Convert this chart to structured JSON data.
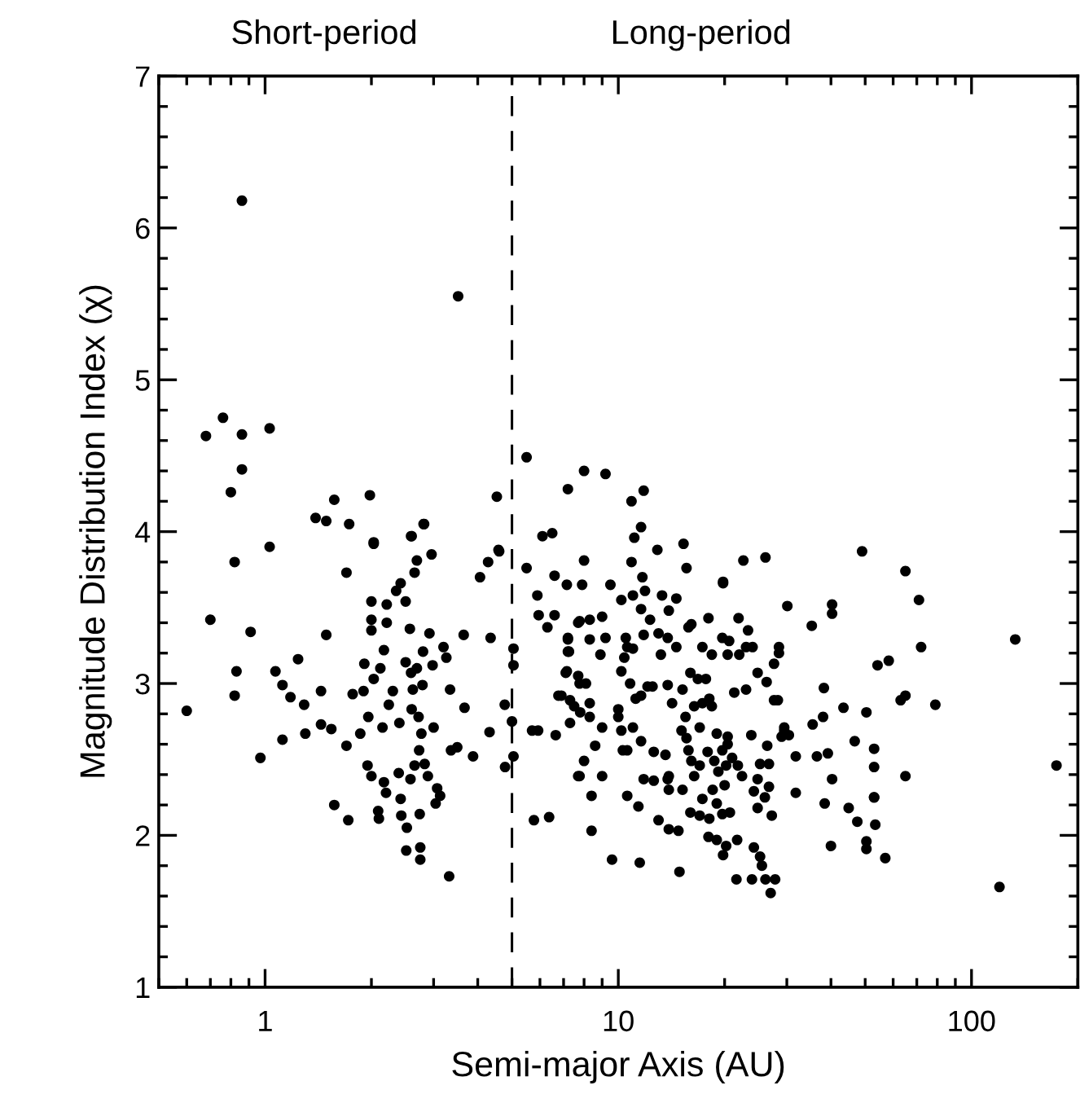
{
  "chart_data": {
    "type": "scatter",
    "xlabel": "Semi-major Axis (AU)",
    "ylabel": "Magnitude Distribution Index (χ)",
    "annotations": [
      "Short-period",
      "Long-period"
    ],
    "log": "x",
    "xlim": [
      0.5,
      200
    ],
    "xticks": [
      1,
      10,
      100
    ],
    "ylim": [
      1,
      7
    ],
    "yticks": [
      1,
      2,
      3,
      4,
      5,
      6,
      7
    ],
    "grid": false,
    "marker": "circle",
    "ref_lines": [
      {
        "axis": "x",
        "value": 5,
        "color": "#000000",
        "line_style": "dashed"
      }
    ],
    "series": [
      {
        "color": "#000000",
        "x": [
          0.86,
          3.52,
          0.68,
          0.76,
          0.86,
          0.86,
          0.8,
          1.03,
          1.39,
          1.49,
          1.57,
          1.73,
          1.98,
          2.03,
          2.6,
          2.82,
          4.53,
          4.58,
          5.5,
          7.2,
          8.0,
          6.1,
          6.5,
          9.2,
          10.9,
          11.8,
          11.6,
          11.1,
          12.9,
          15.3,
          49,
          0.6,
          0.7,
          0.82,
          0.82,
          0.83,
          0.91,
          0.97,
          1.03,
          1.07,
          1.12,
          1.12,
          1.18,
          1.24,
          1.29,
          1.3,
          1.44,
          1.44,
          1.49,
          1.54,
          1.57,
          1.7,
          1.7,
          1.72,
          1.77,
          1.91,
          1.9,
          1.86,
          1.95,
          2.0,
          2.0,
          2.0,
          2.03,
          2.03,
          1.96,
          2.0,
          2.09,
          2.1,
          2.21,
          2.21,
          2.17,
          2.12,
          2.15,
          2.24,
          2.17,
          2.2,
          2.3,
          2.35,
          2.42,
          2.39,
          2.4,
          2.42,
          2.43,
          2.5,
          2.5,
          2.52,
          2.51,
          2.59,
          2.57,
          2.59,
          2.6,
          2.58,
          2.62,
          2.65,
          2.65,
          2.69,
          2.69,
          2.72,
          2.73,
          2.74,
          2.75,
          2.75,
          2.77,
          2.79,
          2.8,
          2.81,
          2.83,
          2.89,
          2.96,
          2.92,
          2.98,
          3.0,
          3.04,
          3.07,
          3.13,
          3.2,
          3.26,
          3.32,
          3.34,
          3.36,
          3.5,
          3.65,
          3.67,
          3.88,
          4.06,
          4.28,
          4.35,
          4.32,
          4.6,
          4.77,
          4.78,
          5.05,
          5.05,
          5.0,
          5.05,
          5.5,
          5.77,
          6.37,
          5.9,
          5.95,
          5.93,
          6.3,
          6.6,
          6.6,
          6.65,
          6.77,
          7.15,
          7.2,
          7.25,
          7.1,
          7.3,
          7.3,
          7.77,
          7.77,
          7.77,
          8.0,
          8.0,
          7.8,
          15.6,
          10.9,
          22.6,
          26.1,
          65,
          71,
          7.9,
          9.5,
          11.7,
          10.2,
          11.0,
          11.9,
          13.3,
          14.6,
          19.8,
          19.8,
          30.1,
          40.3,
          40.3,
          35.3,
          54.2,
          58.3,
          72,
          65,
          63,
          79,
          133,
          174,
          120,
          65,
          53,
          53,
          53,
          53,
          53.4,
          57,
          50.4,
          50.4,
          47.5,
          44.9,
          46.7,
          50.4,
          40,
          40.3,
          38.4,
          39.2,
          38,
          38.2,
          43.4,
          35.5,
          36.5,
          31.8,
          30.4,
          29.5,
          28.5,
          28.5,
          27.6,
          28.3,
          26.3,
          27,
          27.8,
          26.1,
          23.9,
          21.6,
          25.5,
          25.2,
          24.2,
          21.7,
          19.8,
          20.2,
          19,
          18,
          14.9,
          11.5,
          9.6,
          13.9,
          14.8,
          13.0,
          11.4,
          10.6,
          8.4,
          8.4,
          9.0,
          7.7,
          11.8,
          12.6,
          13.8,
          13.9,
          15.2,
          16.0,
          17.0,
          18.1,
          17.3,
          18.5,
          19,
          20,
          19.7,
          20.7,
          24.2,
          24.8,
          26,
          27.2,
          26.7,
          24.8,
          25.2,
          26.7,
          23.8,
          26.4,
          19.7,
          20.4,
          21.0,
          21.8,
          22.4,
          19.2,
          20.2,
          18.7,
          17.9,
          17.0,
          16.4,
          15.8,
          16.1,
          15.6,
          15.1,
          15.5,
          17.0,
          16.4,
          17.3,
          18.1,
          18.4,
          19,
          20.4,
          21.3,
          23,
          24.8,
          27.6,
          29.5,
          31.8,
          29.0,
          17.7,
          16.8,
          15.2,
          16.0,
          14.2,
          13.8,
          12.5,
          11.2,
          11.6,
          10.8,
          12.1,
          10,
          10,
          10.2,
          10.3,
          10.6,
          11,
          11.6,
          12.6,
          13.6,
          13.9,
          9,
          8.6,
          8.3,
          8.3,
          6.9,
          7.5,
          8.1,
          5.7,
          7.15,
          7.7,
          8.9,
          10.4,
          10.6,
          11.0,
          11.8,
          13.0,
          13.8,
          14.6,
          15.8,
          16.1,
          17.3,
          18.4,
          20.4,
          22,
          23,
          24,
          23.3,
          21.9,
          18.0,
          12.3,
          13.9,
          11.6,
          9.0,
          8.3,
          8.3,
          7.7,
          7.2,
          7.2,
          9.2,
          10.5,
          13.2,
          10.2,
          19.7,
          20.6
        ],
        "values": [
          6.18,
          5.55,
          4.63,
          4.75,
          4.64,
          4.41,
          4.26,
          4.68,
          4.09,
          4.07,
          4.21,
          4.05,
          4.24,
          3.93,
          3.97,
          4.05,
          4.23,
          3.88,
          4.49,
          4.28,
          4.4,
          3.97,
          3.99,
          4.38,
          4.2,
          4.27,
          4.03,
          3.96,
          3.88,
          3.92,
          3.87,
          2.82,
          3.42,
          3.8,
          2.92,
          3.08,
          3.34,
          2.51,
          3.9,
          3.08,
          2.99,
          2.63,
          2.91,
          3.16,
          2.86,
          2.67,
          2.95,
          2.73,
          3.32,
          2.7,
          2.2,
          3.73,
          2.59,
          2.1,
          2.93,
          3.13,
          2.95,
          2.67,
          2.46,
          3.54,
          3.42,
          3.35,
          3.92,
          3.03,
          2.78,
          2.39,
          2.16,
          2.11,
          3.4,
          3.52,
          3.22,
          3.1,
          2.71,
          2.86,
          2.35,
          2.28,
          2.95,
          3.61,
          3.66,
          2.41,
          2.74,
          2.24,
          2.13,
          3.54,
          3.14,
          2.05,
          1.9,
          3.97,
          3.36,
          3.07,
          2.83,
          2.37,
          2.96,
          2.46,
          3.73,
          3.81,
          3.1,
          2.78,
          2.56,
          2.14,
          1.92,
          1.84,
          2.67,
          2.99,
          3.21,
          4.05,
          2.47,
          2.39,
          3.85,
          3.33,
          3.12,
          2.71,
          2.21,
          2.31,
          2.26,
          3.24,
          3.17,
          1.73,
          2.96,
          2.56,
          2.58,
          3.32,
          2.84,
          2.52,
          3.7,
          3.8,
          3.3,
          2.68,
          3.87,
          2.86,
          2.45,
          3.23,
          3.12,
          2.75,
          2.52,
          3.76,
          2.1,
          2.12,
          3.58,
          3.45,
          2.69,
          3.37,
          3.71,
          3.45,
          2.66,
          2.92,
          3.65,
          3.3,
          3.21,
          3.07,
          2.89,
          2.74,
          3.41,
          3.0,
          2.39,
          3.81,
          2.49,
          2.81,
          3.76,
          3.8,
          3.81,
          3.83,
          3.74,
          3.55,
          3.65,
          3.65,
          3.7,
          3.55,
          3.58,
          3.61,
          3.58,
          3.56,
          3.66,
          3.67,
          3.51,
          3.52,
          3.46,
          3.38,
          3.12,
          3.15,
          3.24,
          2.92,
          2.89,
          2.86,
          3.29,
          2.46,
          1.66,
          2.39,
          2.57,
          2.45,
          2.25,
          2.25,
          2.07,
          1.85,
          1.96,
          1.91,
          2.09,
          2.18,
          2.62,
          2.81,
          1.93,
          2.37,
          2.21,
          2.54,
          2.78,
          2.97,
          2.84,
          2.73,
          2.52,
          2.28,
          2.66,
          2.69,
          3.2,
          3.24,
          3.13,
          2.89,
          3.01,
          1.62,
          1.71,
          1.71,
          1.71,
          1.71,
          1.8,
          1.86,
          1.92,
          1.97,
          1.87,
          1.93,
          1.97,
          1.99,
          1.76,
          1.82,
          1.84,
          2.04,
          2.03,
          2.1,
          2.19,
          2.26,
          2.03,
          2.26,
          2.39,
          2.39,
          2.37,
          2.36,
          2.37,
          2.3,
          2.3,
          2.15,
          2.13,
          2.11,
          2.24,
          2.3,
          2.21,
          2.33,
          2.14,
          2.15,
          2.29,
          2.37,
          2.25,
          2.13,
          2.32,
          2.18,
          2.47,
          2.47,
          2.66,
          2.59,
          2.56,
          2.6,
          2.51,
          2.46,
          2.39,
          2.42,
          2.46,
          2.49,
          2.55,
          2.46,
          2.39,
          2.56,
          2.49,
          2.64,
          2.69,
          2.78,
          2.71,
          2.85,
          2.87,
          2.9,
          2.85,
          2.67,
          2.65,
          2.94,
          2.96,
          3.07,
          2.89,
          2.71,
          2.52,
          2.65,
          3.03,
          3.03,
          2.96,
          3.07,
          2.87,
          2.99,
          2.98,
          2.9,
          2.92,
          3.0,
          2.98,
          2.83,
          2.78,
          2.69,
          2.56,
          2.56,
          2.71,
          2.62,
          2.55,
          2.53,
          2.39,
          2.71,
          2.59,
          2.78,
          2.87,
          2.92,
          2.85,
          3.0,
          2.69,
          3.08,
          3.05,
          3.19,
          3.17,
          3.24,
          3.23,
          3.32,
          3.33,
          3.3,
          3.24,
          3.37,
          3.39,
          3.24,
          3.19,
          3.19,
          3.19,
          3.24,
          3.24,
          3.35,
          3.43,
          3.43,
          3.42,
          3.48,
          3.49,
          3.44,
          3.42,
          3.29,
          3.4,
          3.29,
          3.21,
          3.3,
          3.3,
          3.19,
          3.08,
          3.3,
          3.28
        ]
      }
    ]
  }
}
